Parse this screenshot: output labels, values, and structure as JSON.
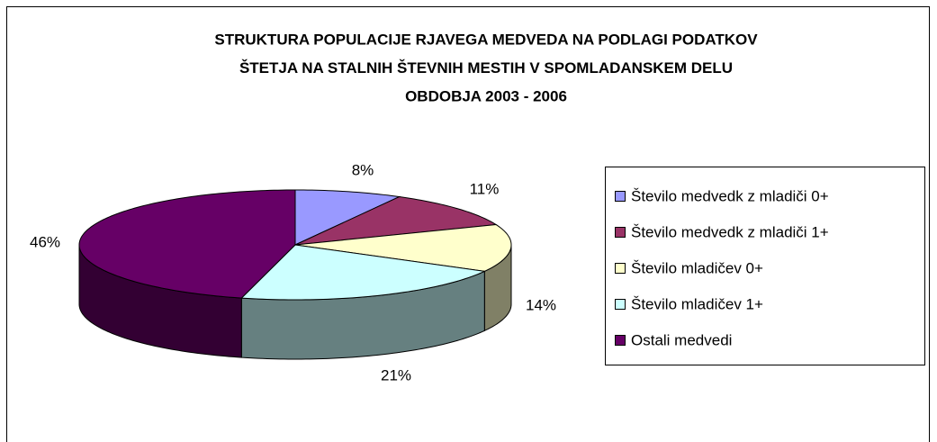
{
  "chart_data": {
    "type": "pie3d",
    "title": [
      "STRUKTURA POPULACIJE RJAVEGA MEDVEDA NA PODLAGI PODATKOV",
      "ŠTETJA NA STALNIH ŠTEVNIH MESTIH V SPOMLADANSKEM DELU",
      "OBDOBJA 2003 - 2006"
    ],
    "categories": [
      "Število medvedk z mladiči 0+",
      "Število medvedk z mladiči 1+",
      "Število mladičev 0+",
      "Število mladičev 1+",
      "Ostali medvedi"
    ],
    "values": [
      8,
      11,
      14,
      21,
      46
    ],
    "value_labels": [
      "8%",
      "11%",
      "14%",
      "21%",
      "46%"
    ],
    "colors": [
      "#9999ff",
      "#993366",
      "#ffffcc",
      "#ccffff",
      "#660066"
    ],
    "legend": "right"
  }
}
